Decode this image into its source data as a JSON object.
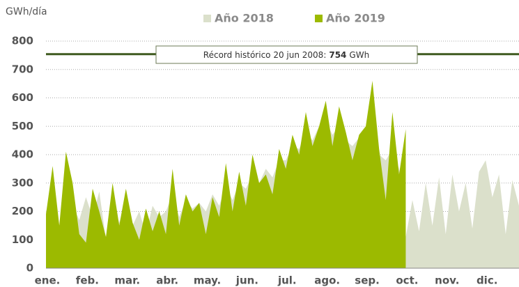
{
  "chart_data": {
    "type": "area",
    "y_label": "GWh/día",
    "categories": [
      "ene.",
      null,
      null,
      null,
      null,
      null,
      "feb.",
      null,
      null,
      null,
      null,
      null,
      "mar.",
      null,
      null,
      null,
      null,
      null,
      "abr.",
      null,
      null,
      null,
      null,
      null,
      "may.",
      null,
      null,
      null,
      null,
      null,
      "jun.",
      null,
      null,
      null,
      null,
      null,
      "jul.",
      null,
      null,
      null,
      null,
      null,
      "ago.",
      null,
      null,
      null,
      null,
      null,
      "sep.",
      null,
      null,
      null,
      null,
      null,
      "oct.",
      null,
      null,
      null,
      null,
      null,
      "nov.",
      null,
      null,
      null,
      null,
      null,
      "dic.",
      null,
      null,
      null,
      null,
      null
    ],
    "series": [
      {
        "name": "Año 2018",
        "color": "#dbe0cb",
        "values": [
          200,
          260,
          150,
          280,
          220,
          170,
          250,
          180,
          270,
          100,
          230,
          160,
          240,
          150,
          200,
          120,
          220,
          180,
          200,
          260,
          180,
          240,
          210,
          230,
          200,
          260,
          220,
          290,
          240,
          300,
          280,
          330,
          300,
          350,
          320,
          380,
          380,
          430,
          420,
          480,
          450,
          500,
          520,
          470,
          500,
          450,
          430,
          460,
          440,
          480,
          400,
          380,
          420,
          350,
          110,
          240,
          130,
          300,
          150,
          320,
          120,
          330,
          200,
          300,
          140,
          340,
          380,
          250,
          330,
          120,
          310,
          220
        ]
      },
      {
        "name": "Año 2019",
        "color": "#9cba00",
        "values": [
          190,
          360,
          150,
          410,
          300,
          120,
          90,
          280,
          200,
          110,
          300,
          150,
          280,
          160,
          100,
          210,
          130,
          200,
          120,
          350,
          150,
          260,
          200,
          230,
          120,
          250,
          180,
          370,
          200,
          340,
          220,
          400,
          300,
          330,
          260,
          420,
          350,
          470,
          400,
          550,
          430,
          500,
          590,
          430,
          570,
          480,
          380,
          470,
          500,
          660,
          420,
          240,
          550,
          330,
          490,
          null,
          null,
          null,
          null,
          null,
          null,
          null,
          null,
          null,
          null,
          null,
          null,
          null,
          null,
          null,
          null,
          null
        ]
      }
    ],
    "annotation": {
      "prefix": "Récord histórico 20 jun 2008:",
      "value": 754,
      "unit": "GWh"
    },
    "ylim": [
      0,
      800
    ],
    "yticks": [
      0,
      100,
      200,
      300,
      400,
      500,
      600,
      700,
      800
    ],
    "grid": true
  }
}
